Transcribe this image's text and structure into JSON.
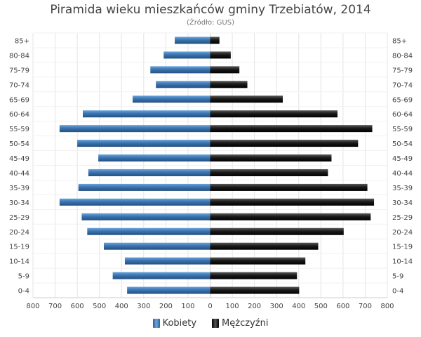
{
  "chart_data": {
    "type": "bar",
    "orientation": "horizontal",
    "layout": "population-pyramid",
    "title": "Piramida wieku mieszkańców gminy Trzebiatów, 2014",
    "subtitle": "(Źródło: GUS)",
    "categories": [
      "85+",
      "80-84",
      "75-79",
      "70-74",
      "65-69",
      "60-64",
      "55-59",
      "50-54",
      "45-49",
      "40-44",
      "35-39",
      "30-34",
      "25-29",
      "20-24",
      "15-19",
      "10-14",
      "5-9",
      "0-4"
    ],
    "series": [
      {
        "name": "Kobiety",
        "side": "left",
        "color": "#3a74b0",
        "values": [
          160,
          210,
          270,
          245,
          350,
          575,
          680,
          600,
          505,
          550,
          595,
          680,
          580,
          555,
          480,
          385,
          440,
          375
        ]
      },
      {
        "name": "Mężczyźni",
        "side": "right",
        "color": "#1a1a1a",
        "values": [
          42,
          93,
          132,
          168,
          328,
          575,
          732,
          668,
          548,
          532,
          710,
          740,
          725,
          603,
          488,
          430,
          392,
          402
        ]
      }
    ],
    "xlim": [
      -800,
      800
    ],
    "x_ticks": [
      -800,
      -700,
      -600,
      -500,
      -400,
      -300,
      -200,
      -100,
      0,
      100,
      200,
      300,
      400,
      500,
      600,
      700,
      800
    ],
    "x_tick_labels": [
      "800",
      "700",
      "600",
      "500",
      "400",
      "300",
      "200",
      "100",
      "0",
      "100",
      "200",
      "300",
      "400",
      "500",
      "600",
      "700",
      "800"
    ],
    "grid": true,
    "legend_placement": "bottom-center"
  },
  "legend": {
    "women_label": "Kobiety",
    "men_label": "Mężczyźni"
  }
}
